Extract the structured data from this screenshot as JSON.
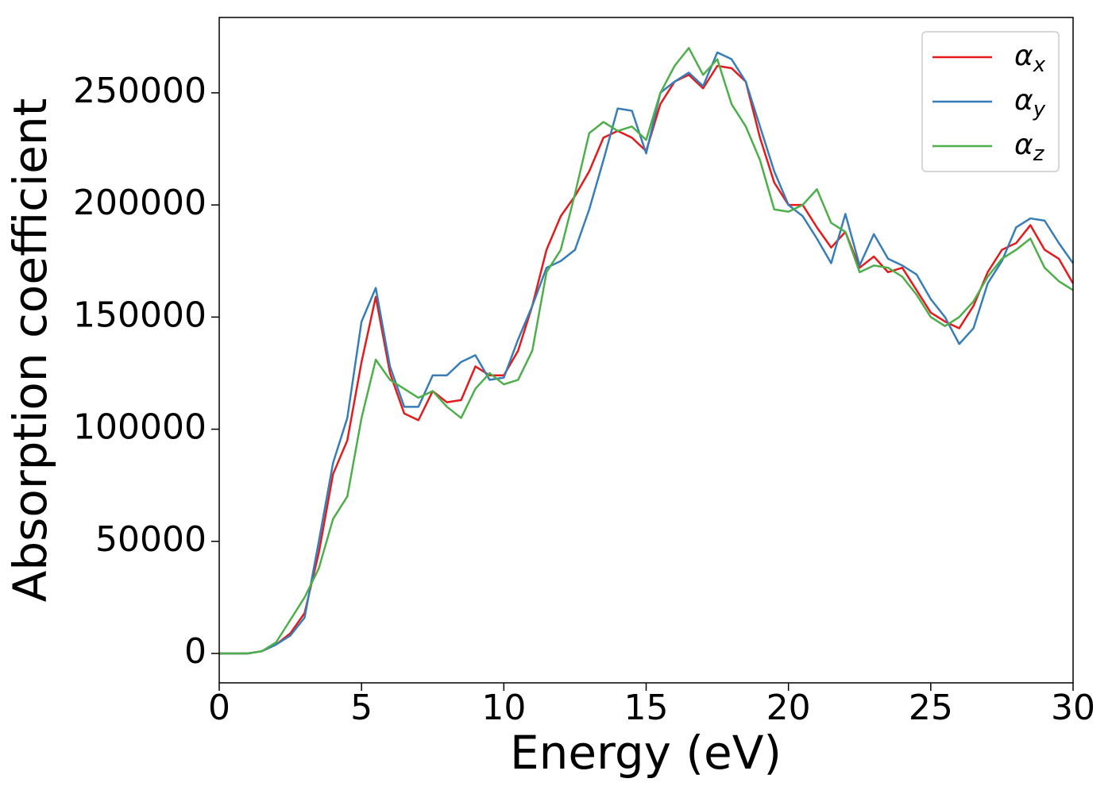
{
  "chart_data": {
    "type": "line",
    "xlabel": "Energy (eV)",
    "ylabel": "Absorption coefficient",
    "x": [
      0,
      0.5,
      1,
      1.5,
      2,
      2.5,
      3,
      3.5,
      4,
      4.5,
      5,
      5.5,
      6,
      6.5,
      7,
      7.5,
      8,
      8.5,
      9,
      9.5,
      10,
      10.5,
      11,
      11.5,
      12,
      12.5,
      13,
      13.5,
      14,
      14.5,
      15,
      15.5,
      16,
      16.5,
      17,
      17.5,
      18,
      18.5,
      19,
      19.5,
      20,
      20.5,
      21,
      21.5,
      22,
      22.5,
      23,
      23.5,
      24,
      24.5,
      25,
      25.5,
      26,
      26.5,
      27,
      27.5,
      28,
      28.5,
      29,
      29.5,
      30
    ],
    "series": [
      {
        "name": "αx",
        "color": "#e41a1c",
        "values": [
          0,
          0,
          0,
          1000,
          4000,
          9000,
          18000,
          45000,
          80000,
          95000,
          130000,
          159000,
          125000,
          107000,
          104000,
          117000,
          112000,
          113000,
          128000,
          124000,
          124000,
          135000,
          155000,
          180000,
          195000,
          204000,
          215000,
          230000,
          233000,
          230000,
          224000,
          245000,
          255000,
          258000,
          252000,
          262000,
          261000,
          255000,
          230000,
          210000,
          200000,
          200000,
          190000,
          181000,
          188000,
          172000,
          177000,
          170000,
          172000,
          162000,
          152000,
          148000,
          145000,
          155000,
          170000,
          180000,
          183000,
          191000,
          180000,
          176000,
          165000
        ]
      },
      {
        "name": "αy",
        "color": "#377eb8",
        "values": [
          0,
          0,
          0,
          1000,
          4000,
          8000,
          16000,
          50000,
          85000,
          105000,
          148000,
          163000,
          128000,
          110000,
          110000,
          124000,
          124000,
          130000,
          133000,
          122000,
          123000,
          140000,
          155000,
          172000,
          175000,
          180000,
          198000,
          220000,
          243000,
          242000,
          223000,
          250000,
          255000,
          259000,
          253000,
          268000,
          265000,
          255000,
          235000,
          215000,
          200000,
          195000,
          185000,
          174000,
          196000,
          173000,
          187000,
          176000,
          173000,
          169000,
          158000,
          150000,
          138000,
          145000,
          165000,
          175000,
          190000,
          194000,
          193000,
          183000,
          174000
        ]
      },
      {
        "name": "αz",
        "color": "#4daf4a",
        "values": [
          0,
          0,
          0,
          1000,
          5000,
          15000,
          25000,
          38000,
          60000,
          70000,
          105000,
          131000,
          122000,
          118000,
          114000,
          117000,
          110000,
          105000,
          118000,
          125000,
          120000,
          122000,
          135000,
          170000,
          180000,
          205000,
          232000,
          237000,
          233000,
          235000,
          229000,
          250000,
          262000,
          270000,
          258000,
          265000,
          245000,
          235000,
          220000,
          198000,
          197000,
          200000,
          207000,
          192000,
          188000,
          170000,
          173000,
          172000,
          168000,
          160000,
          150000,
          146000,
          150000,
          157000,
          168000,
          176000,
          180000,
          185000,
          172000,
          166000,
          162000
        ]
      }
    ],
    "xlim": [
      0,
      30
    ],
    "xticks": [
      0,
      5,
      10,
      15,
      20,
      25,
      30
    ],
    "ylim": [
      -13100,
      283600
    ],
    "yticks": [
      0,
      50000,
      100000,
      150000,
      200000,
      250000
    ],
    "legend": "upper right",
    "grid": false
  }
}
